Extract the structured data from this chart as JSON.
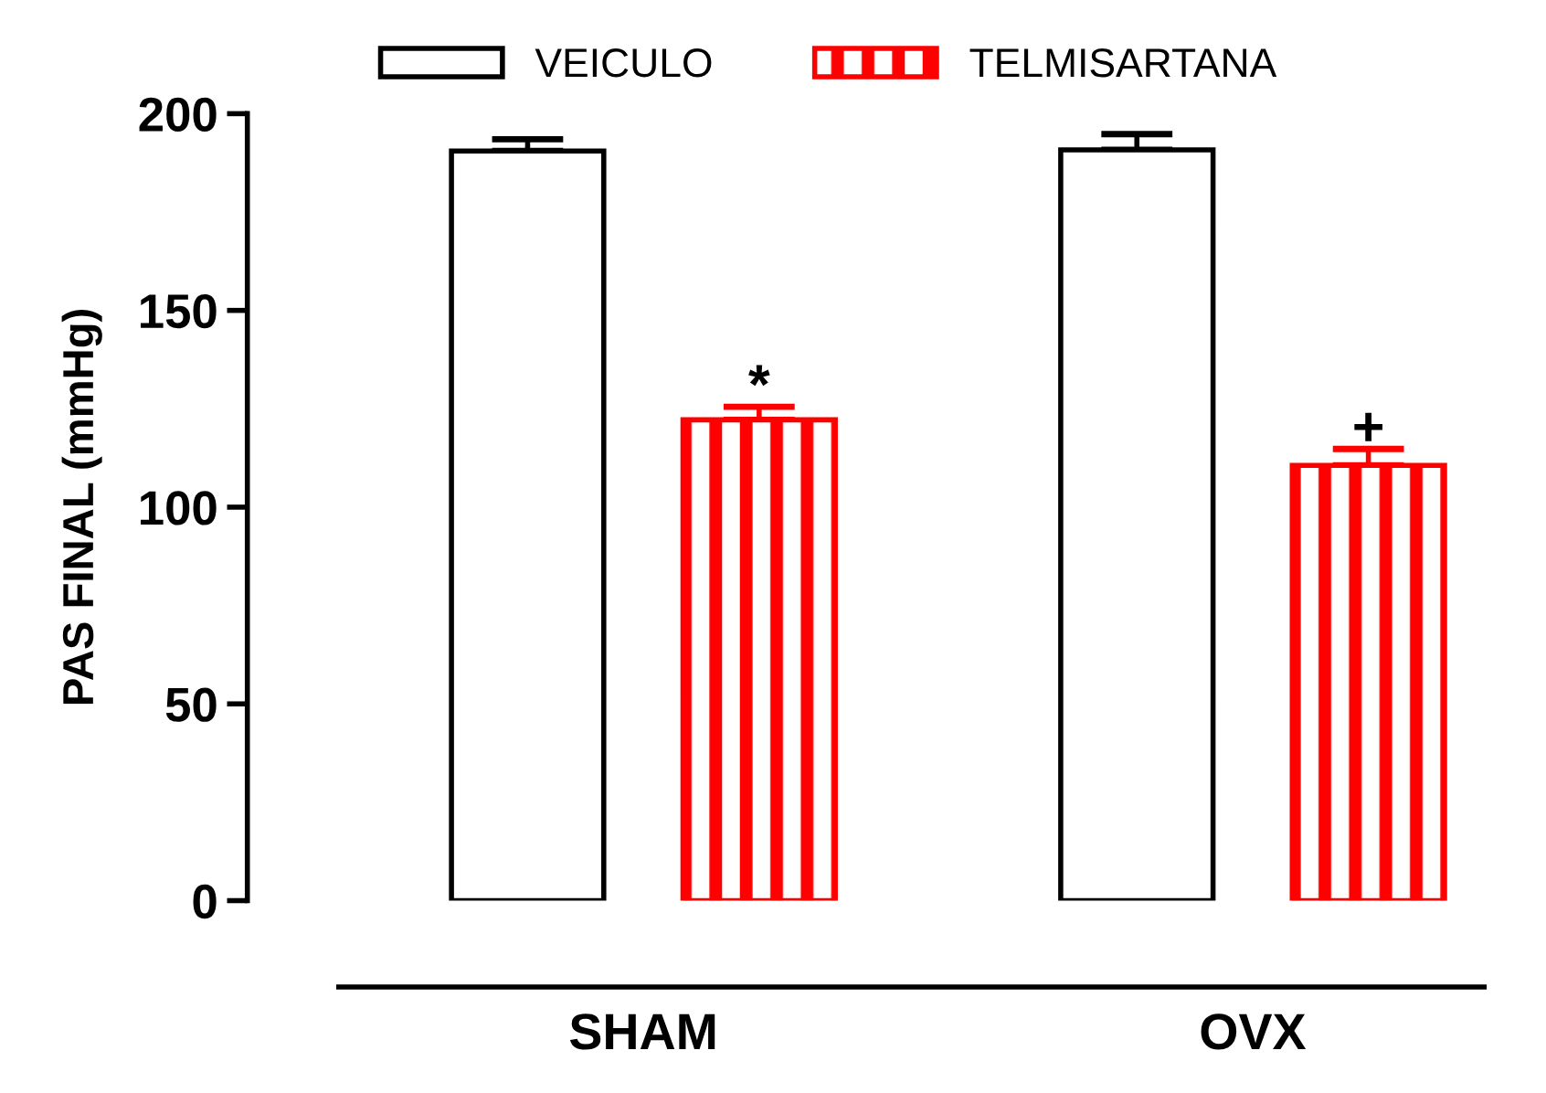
{
  "chart_data": {
    "type": "bar",
    "ylabel": "PAS FINAL (mmHg)",
    "categories": [
      "SHAM",
      "OVX"
    ],
    "series": [
      {
        "name": "VEICULO",
        "color": "#000000",
        "values": [
          190.5,
          190.8
        ],
        "errors": [
          3,
          4
        ]
      },
      {
        "name": "TELMISARTANA",
        "color": "#ff0000",
        "values": [
          122.2,
          110.6
        ],
        "errors": [
          3.3,
          4.2
        ]
      }
    ],
    "annotations": [
      "*",
      "+"
    ],
    "ylim": [
      0,
      200
    ],
    "yticks": [
      0,
      50,
      100,
      150,
      200
    ],
    "grid": false,
    "legend": "top"
  }
}
